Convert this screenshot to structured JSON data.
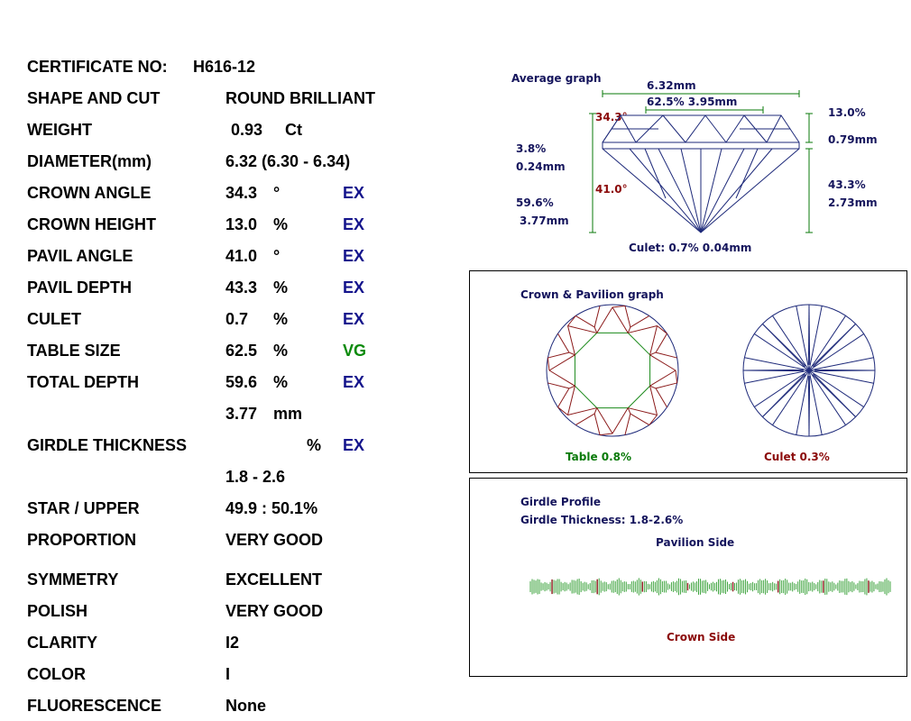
{
  "cert": {
    "label": "CERTIFICATE NO:",
    "value": "H616-12"
  },
  "rows": [
    {
      "label": "SHAPE AND CUT",
      "value": "ROUND BRILLIANT",
      "unit": "",
      "grade": ""
    },
    {
      "label": "WEIGHT",
      "value": "0.93",
      "unit": "Ct",
      "grade": ""
    },
    {
      "label": "DIAMETER(mm)",
      "value": "6.32 (6.30 - 6.34)",
      "unit": "",
      "grade": ""
    },
    {
      "label": "CROWN ANGLE",
      "value": "34.3",
      "unit": "°",
      "grade": "EX"
    },
    {
      "label": "CROWN HEIGHT",
      "value": "13.0",
      "unit": "%",
      "grade": "EX"
    },
    {
      "label": "PAVIL ANGLE",
      "value": "41.0",
      "unit": "°",
      "grade": "EX"
    },
    {
      "label": "PAVIL DEPTH",
      "value": "43.3",
      "unit": "%",
      "grade": "EX"
    },
    {
      "label": "CULET",
      "value": "0.7",
      "unit": "%",
      "grade": "EX"
    },
    {
      "label": "TABLE SIZE",
      "value": "62.5",
      "unit": "%",
      "grade": "VG"
    },
    {
      "label": "TOTAL DEPTH",
      "value": "59.6",
      "unit": "%",
      "grade": "EX"
    },
    {
      "label": "",
      "value": "3.77",
      "unit": "mm",
      "grade": ""
    },
    {
      "label": "GIRDLE THICKNESS",
      "value": "",
      "unit": "%",
      "grade": "EX"
    },
    {
      "label": "",
      "value": "1.8 - 2.6",
      "unit": "",
      "grade": ""
    },
    {
      "label": "STAR / UPPER",
      "value": "49.9 : 50.1%",
      "unit": "",
      "grade": ""
    },
    {
      "label": "PROPORTION",
      "value": "VERY GOOD",
      "unit": "",
      "grade": ""
    },
    {
      "label": "SYMMETRY",
      "value": "EXCELLENT",
      "unit": "",
      "grade": ""
    },
    {
      "label": "POLISH",
      "value": "VERY GOOD",
      "unit": "",
      "grade": ""
    },
    {
      "label": "CLARITY",
      "value": "I2",
      "unit": "",
      "grade": ""
    },
    {
      "label": "COLOR",
      "value": "I",
      "unit": "",
      "grade": ""
    },
    {
      "label": "FLUORESCENCE",
      "value": "None",
      "unit": "",
      "grade": ""
    }
  ],
  "avg_graph": {
    "title": "Average graph",
    "diameter": "6.32mm",
    "table": "62.5% 3.95mm",
    "crown_angle": "34.3°",
    "crown_pct": "13.0%",
    "crown_mm": "0.79mm",
    "girdle_pct": "3.8%",
    "girdle_mm": "0.24mm",
    "pav_angle": "41.0°",
    "total_pct": "59.6%",
    "total_mm": "3.77mm",
    "pav_pct": "43.3%",
    "pav_mm": "2.73mm",
    "culet": "Culet: 0.7% 0.04mm"
  },
  "cp_graph": {
    "title": "Crown & Pavilion graph",
    "table_label": "Table 0.8%",
    "culet_label": "Culet 0.3%"
  },
  "girdle": {
    "title": "Girdle Profile",
    "thickness": "Girdle Thickness: 1.8-2.6%",
    "pav_side": "Pavilion Side",
    "crown_side": "Crown Side"
  },
  "colors": {
    "grade": "#14148c",
    "vg": "#0a8a0a",
    "blue_lines": "#1e2a7a",
    "red_lines": "#8b1a1a",
    "green_lines": "#1a8a1a"
  }
}
